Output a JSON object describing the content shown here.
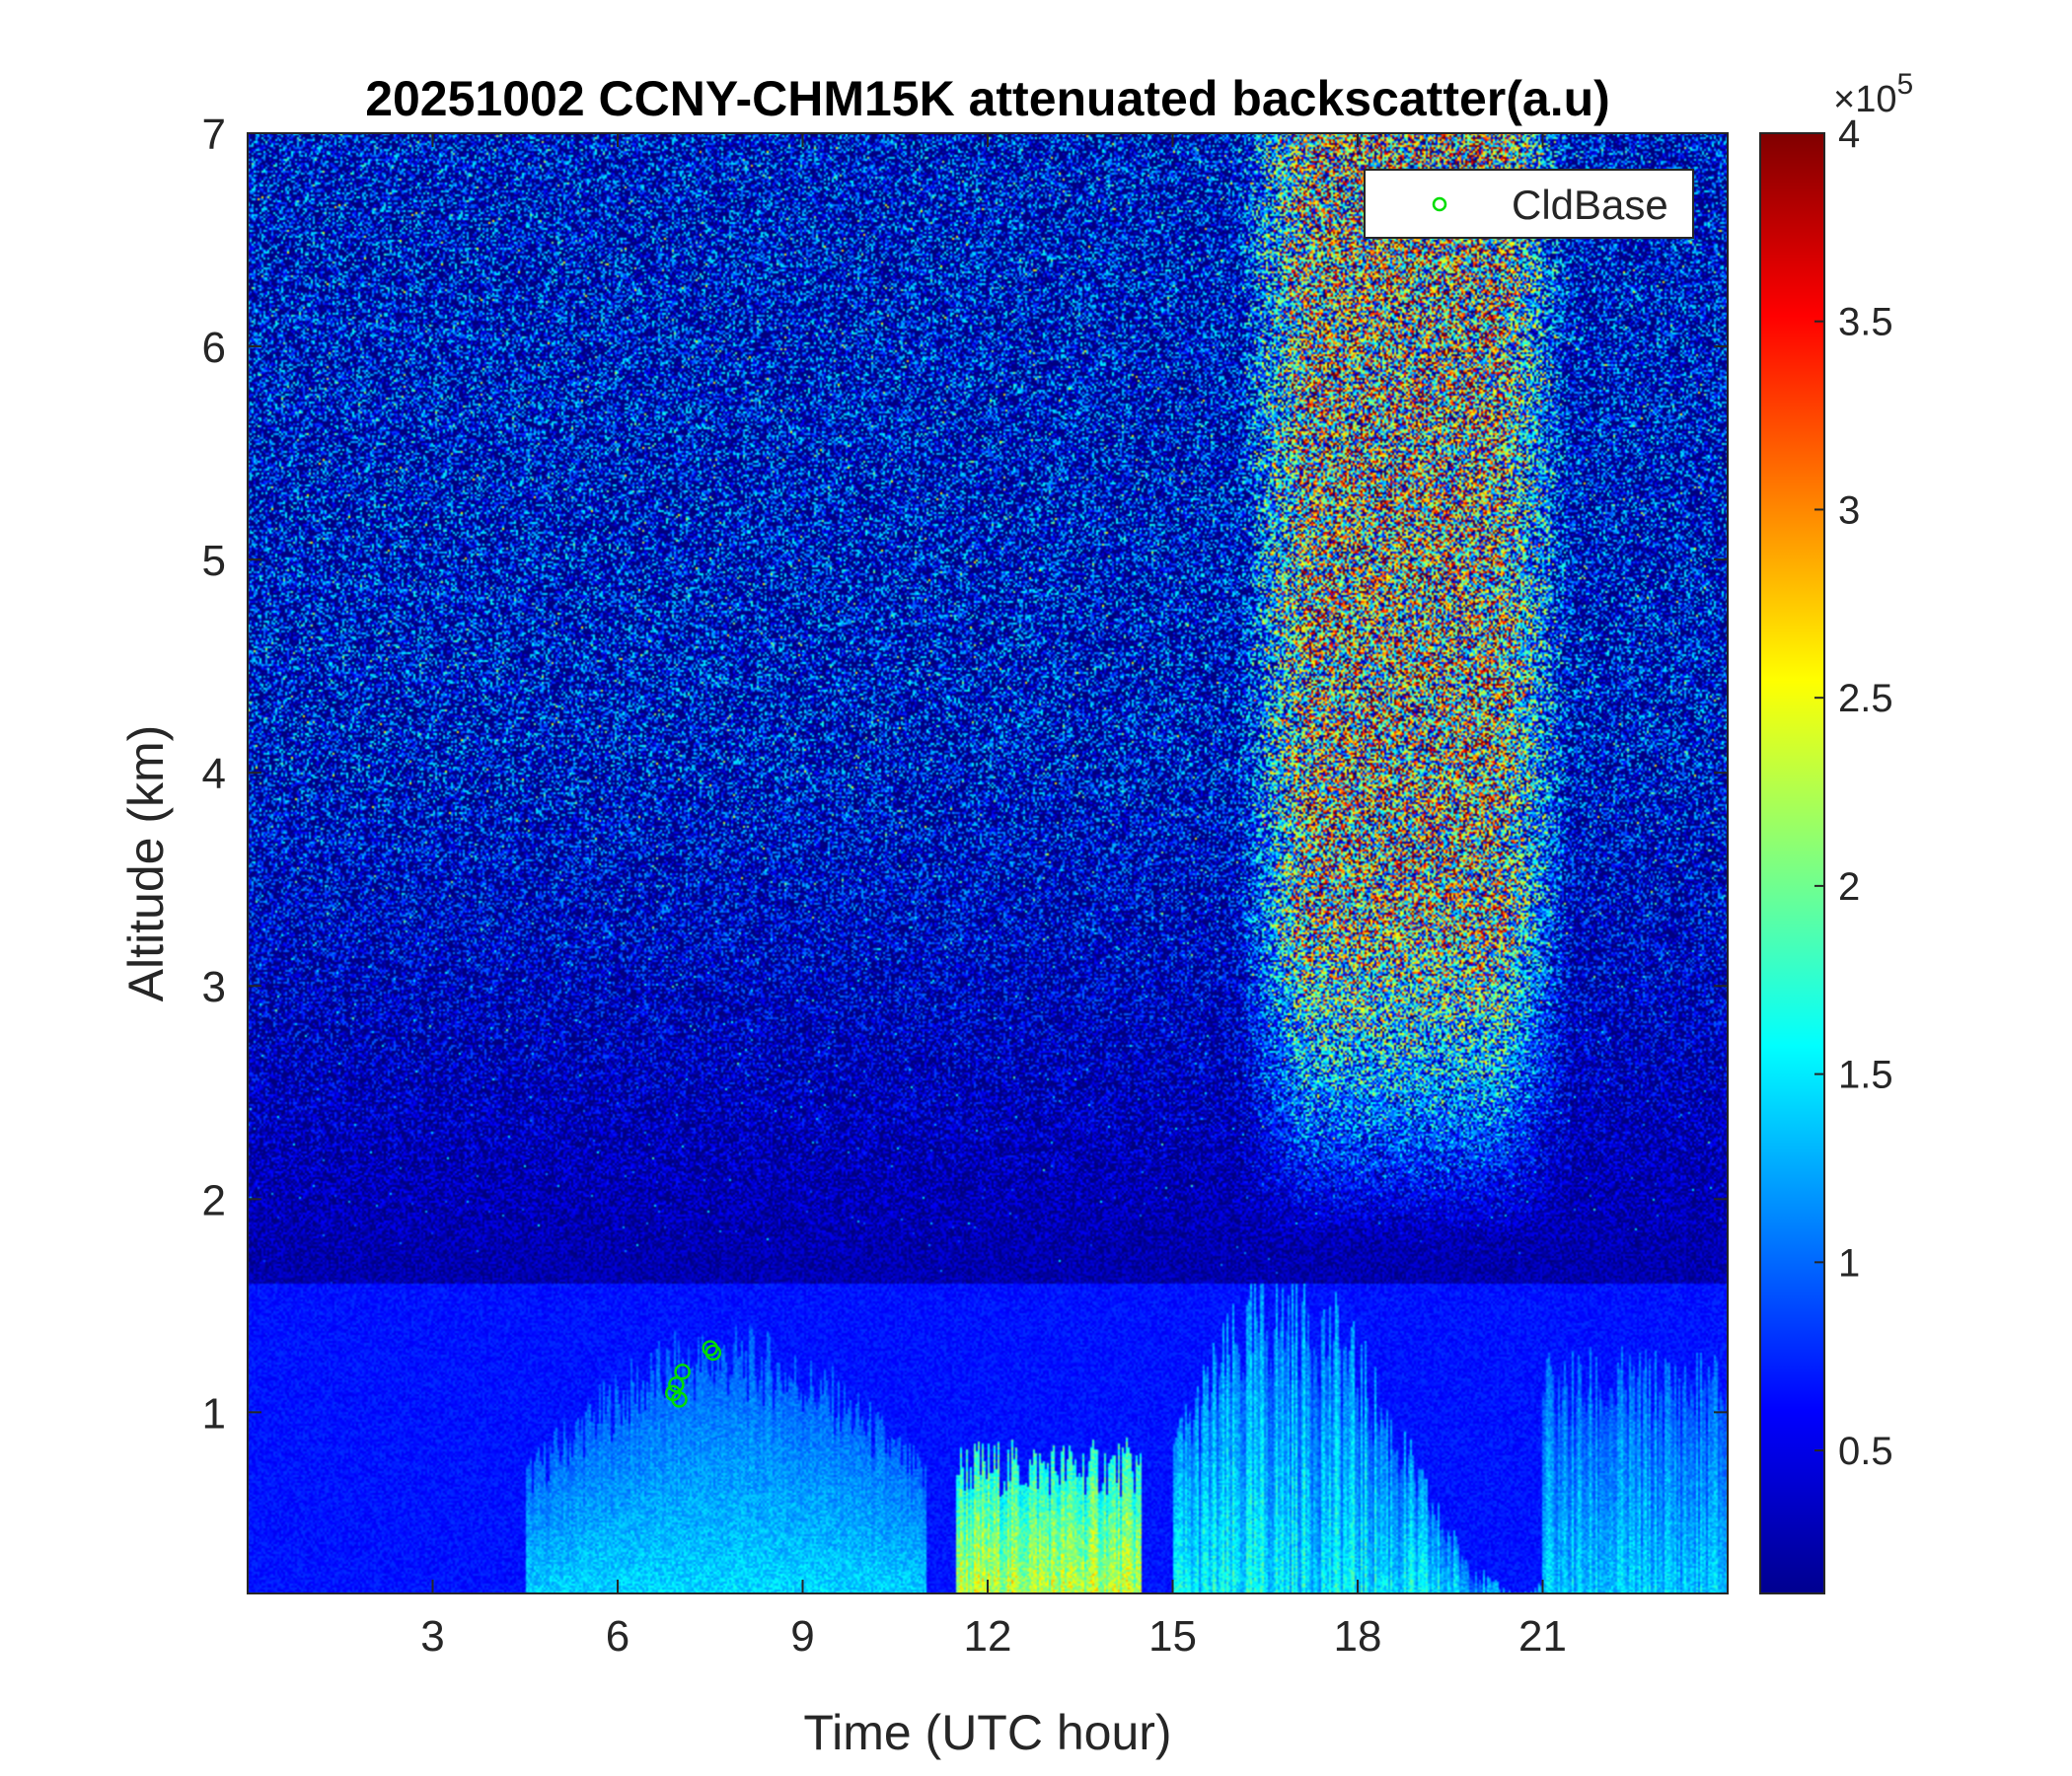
{
  "chart_data": {
    "type": "heatmap",
    "title": "20251002 CCNY-CHM15K attenuated backscatter(a.u)",
    "xlabel": "Time (UTC hour)",
    "ylabel": "Altitude (km)",
    "xlim": [
      0,
      24
    ],
    "ylim": [
      0.15,
      7
    ],
    "xticks": [
      3,
      6,
      9,
      12,
      15,
      18,
      21
    ],
    "yticks": [
      1,
      2,
      3,
      4,
      5,
      6,
      7
    ],
    "colormap": "jet",
    "colorbar": {
      "clim": [
        0.12,
        4
      ],
      "ticks": [
        0.5,
        1,
        1.5,
        2,
        2.5,
        3,
        3.5,
        4
      ],
      "exponent_label": "×10",
      "exponent": "5"
    },
    "legend": {
      "location": "top-right",
      "entries": [
        "CldBase"
      ],
      "marker": "circle",
      "color": "#00dd00"
    },
    "features": [
      {
        "name": "boundary-layer aerosol",
        "x_range": [
          4.5,
          11
        ],
        "top_km": 1.3,
        "level": 1.5
      },
      {
        "name": "dense aerosol layer",
        "x_range": [
          11.5,
          14.5
        ],
        "top_km": 0.8,
        "level": 2.6
      },
      {
        "name": "convective plumes",
        "x_range": [
          15,
          21
        ],
        "top_km": 1.5,
        "level": 1.8
      },
      {
        "name": "high background noise",
        "x_range": [
          16,
          21.5
        ],
        "bottom_km": 1.8,
        "level": 3.3
      }
    ],
    "series": [
      {
        "name": "CldBase",
        "x": [
          6.9,
          6.95,
          7.0,
          7.05,
          7.5,
          7.55
        ],
        "y": [
          1.09,
          1.13,
          1.06,
          1.19,
          1.3,
          1.28
        ]
      }
    ]
  }
}
